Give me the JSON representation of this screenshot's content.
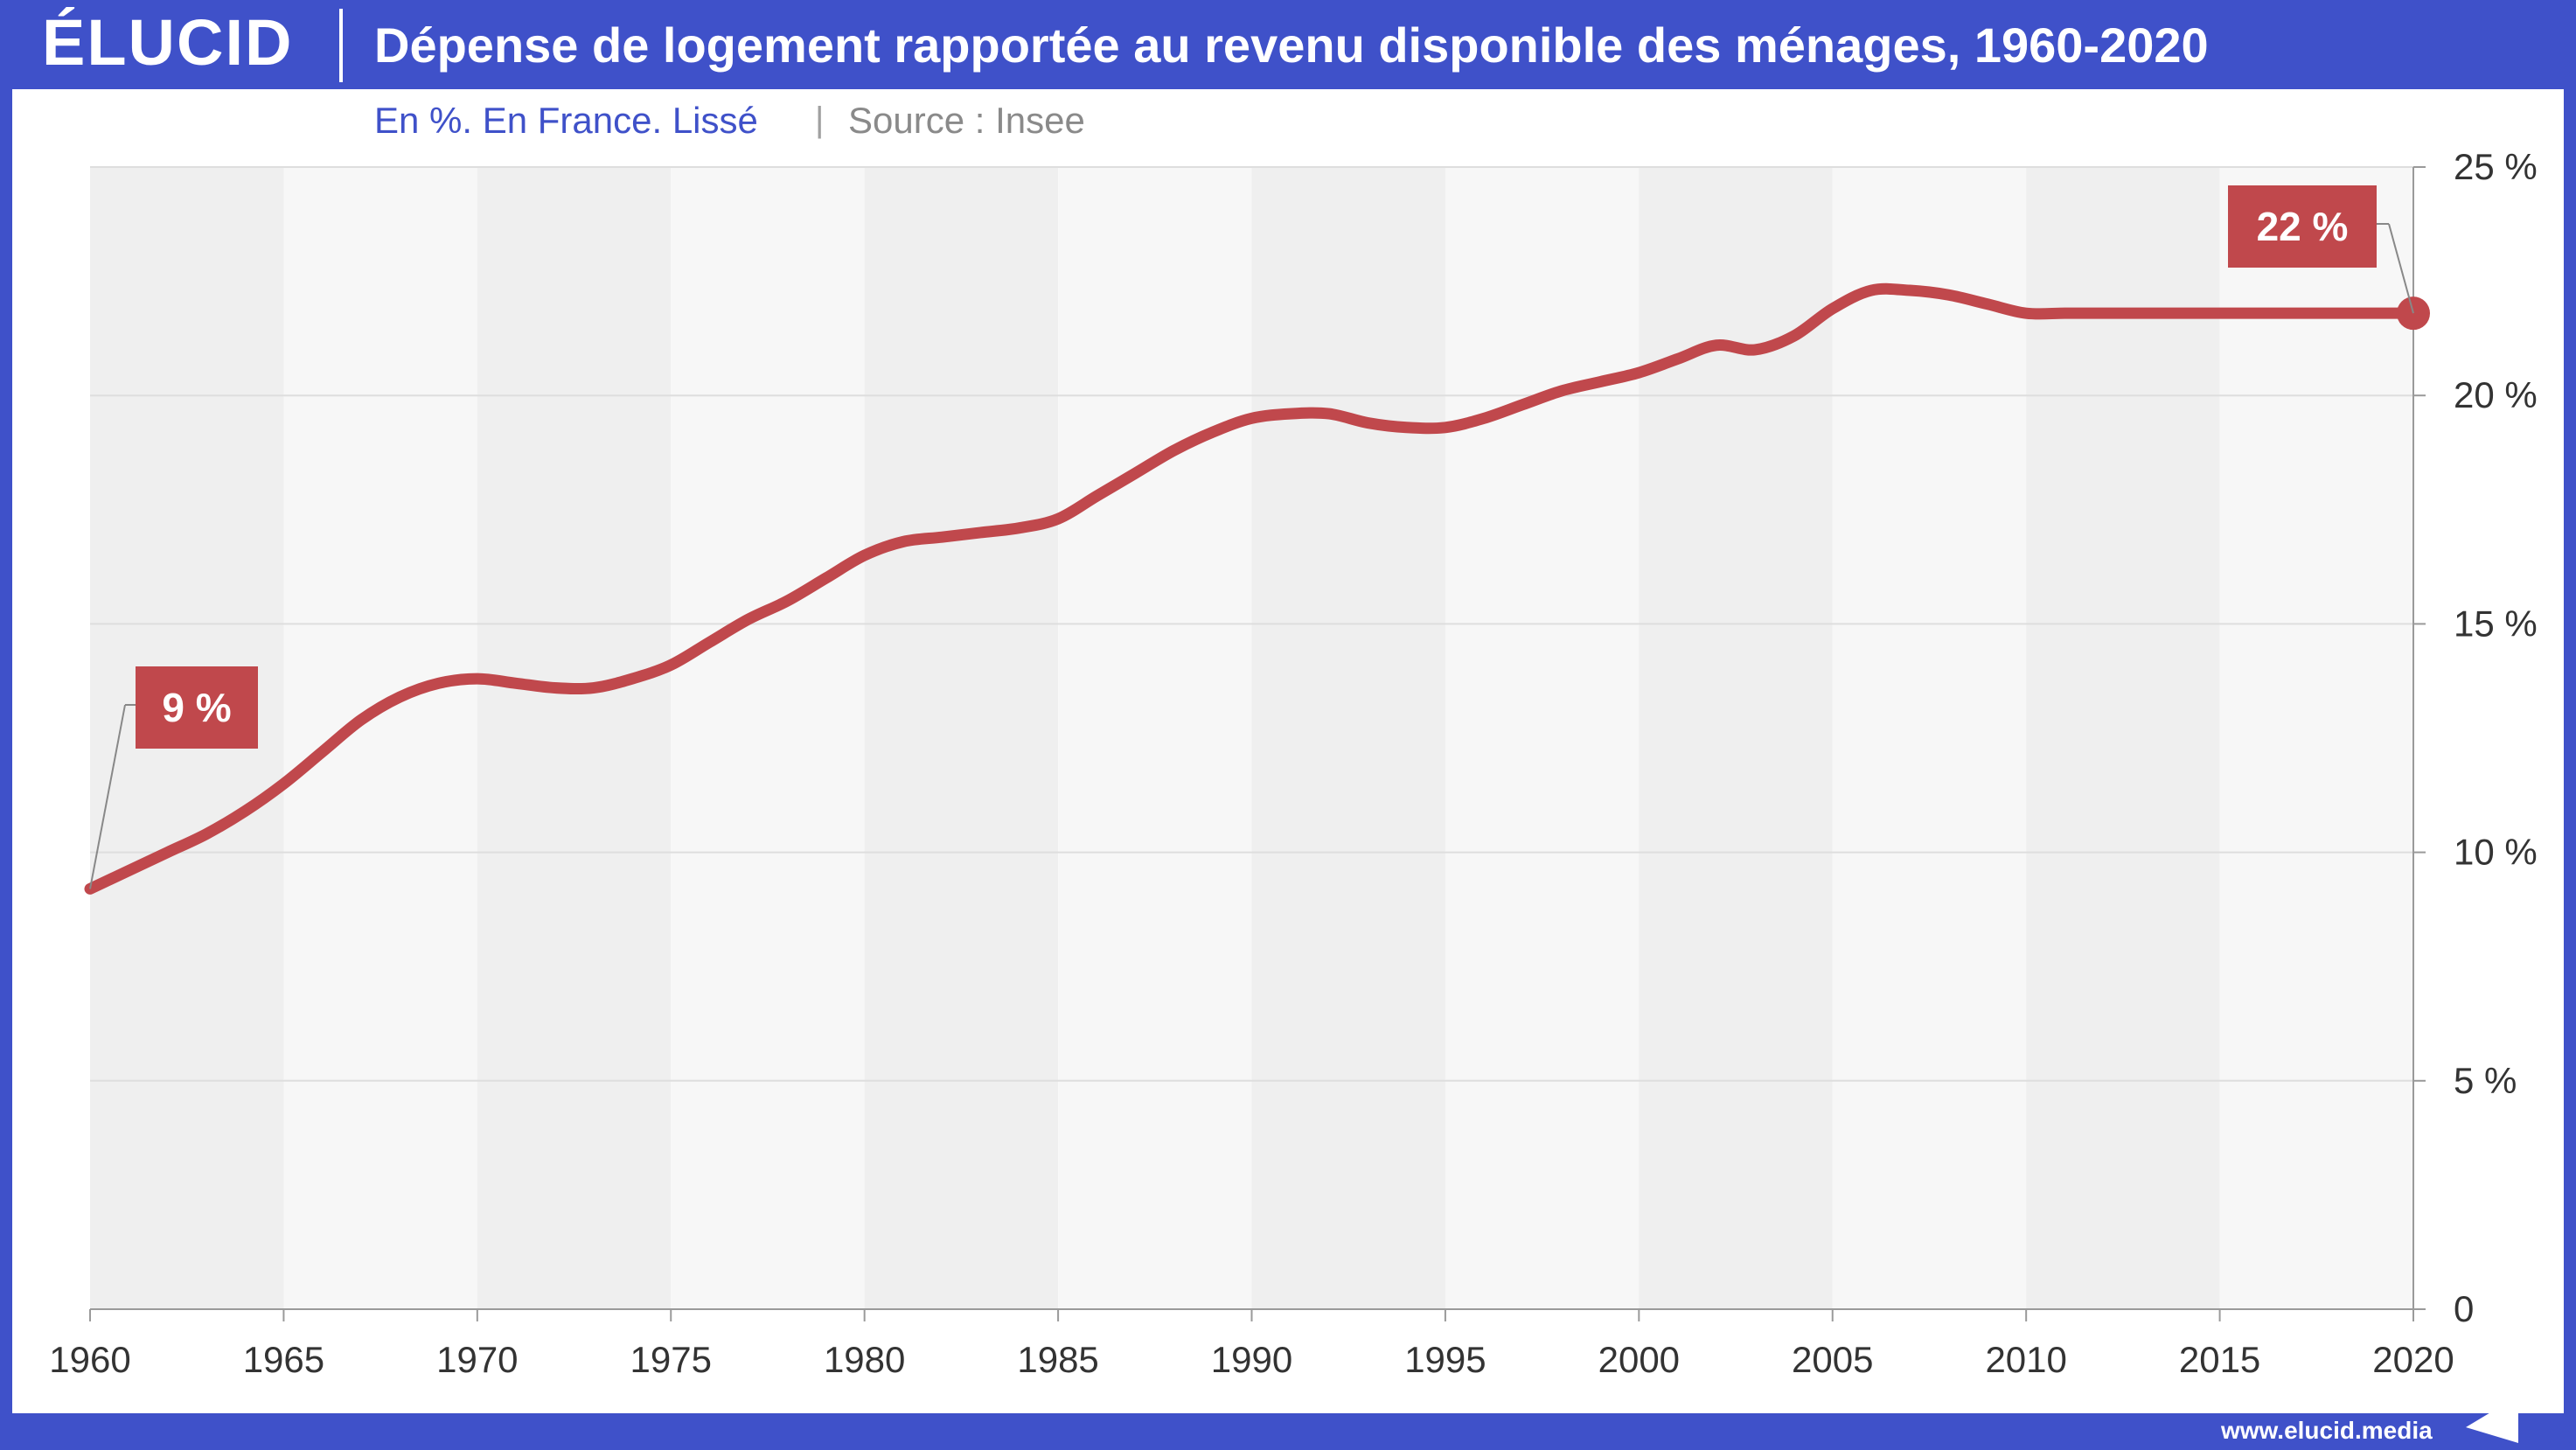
{
  "brand": {
    "logo_text": "ÉLUCID",
    "footer_url": "www.elucid.media",
    "frame_color": "#3f51c9",
    "accent_color": "#c0484c"
  },
  "header": {
    "title": "Dépense de logement rapportée au revenu disponible des ménages, 1960-2020",
    "subtitle": "En %. En France. Lissé",
    "separator": "|",
    "source": "Source : Insee"
  },
  "chart_data": {
    "type": "line",
    "title": "Dépense de logement rapportée au revenu disponible des ménages, 1960-2020",
    "subtitle": "En %. En France. Lissé",
    "xlabel": "",
    "ylabel": "",
    "xlim": [
      1960,
      2020
    ],
    "ylim": [
      0,
      25
    ],
    "x_ticks": [
      1960,
      1965,
      1970,
      1975,
      1980,
      1985,
      1990,
      1995,
      2000,
      2005,
      2010,
      2015,
      2020
    ],
    "y_ticks": [
      0,
      5,
      10,
      15,
      20,
      25
    ],
    "y_tick_labels": [
      "0",
      "5 %",
      "10 %",
      "15 %",
      "20 %",
      "25 %"
    ],
    "grid": "horizontal",
    "alternating_year_bands": true,
    "y_axis_position": "right",
    "series": [
      {
        "color": "#c0484c",
        "x": [
          1960,
          1961,
          1962,
          1963,
          1964,
          1965,
          1966,
          1967,
          1968,
          1969,
          1970,
          1971,
          1972,
          1973,
          1974,
          1975,
          1976,
          1977,
          1978,
          1979,
          1980,
          1981,
          1982,
          1983,
          1984,
          1985,
          1986,
          1987,
          1988,
          1989,
          1990,
          1991,
          1992,
          1993,
          1994,
          1995,
          1996,
          1997,
          1998,
          1999,
          2000,
          2001,
          2002,
          2003,
          2004,
          2005,
          2006,
          2007,
          2008,
          2009,
          2010,
          2011,
          2012,
          2013,
          2014,
          2015,
          2016,
          2017,
          2018,
          2019,
          2020
        ],
        "values": [
          9.2,
          9.6,
          10.0,
          10.4,
          10.9,
          11.5,
          12.2,
          12.9,
          13.4,
          13.7,
          13.8,
          13.7,
          13.6,
          13.6,
          13.8,
          14.1,
          14.6,
          15.1,
          15.5,
          16.0,
          16.5,
          16.8,
          16.9,
          17.0,
          17.1,
          17.3,
          17.8,
          18.3,
          18.8,
          19.2,
          19.5,
          19.6,
          19.6,
          19.4,
          19.3,
          19.3,
          19.5,
          19.8,
          20.1,
          20.3,
          20.5,
          20.8,
          21.1,
          21.0,
          21.3,
          21.9,
          22.3,
          22.3,
          22.2,
          22.0,
          21.8,
          21.8,
          21.8,
          21.8,
          21.8,
          21.8,
          21.8,
          21.8,
          21.8,
          21.8,
          21.8
        ]
      }
    ],
    "annotations": [
      {
        "label": "9 %",
        "x": 1960,
        "y": 9.2
      },
      {
        "label": "22 %",
        "x": 2020,
        "y": 21.8
      }
    ]
  }
}
